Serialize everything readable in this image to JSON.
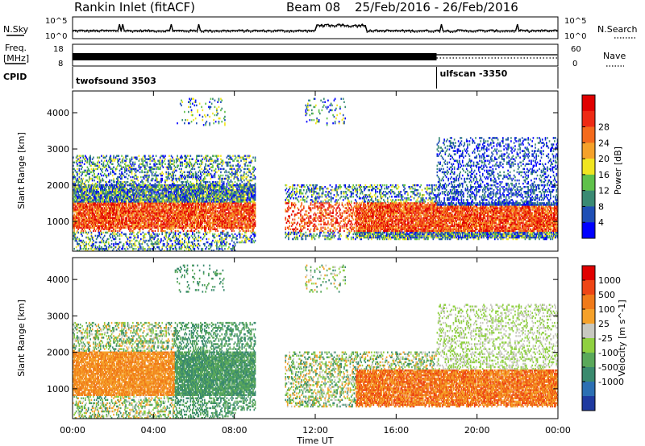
{
  "header": {
    "station": "Rankin Inlet (fitACF)",
    "beam": "Beam 08",
    "date_range": "25/Feb/2016 - 26/Feb/2016"
  },
  "panels": {
    "nsky": {
      "left_label": "N.Sky",
      "left_ticks": [
        "10^5",
        "10^0"
      ],
      "right_label": "N.Search",
      "right_ticks": [
        "10^5",
        "10^0"
      ]
    },
    "freq": {
      "left_label_top": "Freq.",
      "left_label_unit": "[MHz]",
      "left_ticks": [
        "18",
        "8"
      ],
      "right_label": "Nave",
      "right_ticks": [
        "60",
        "0"
      ]
    },
    "cpid": {
      "label": "CPID",
      "segments": [
        {
          "name": "twofsound 3503",
          "start_h": 0
        },
        {
          "name": "ulfscan -3350",
          "start_h": 18
        }
      ]
    }
  },
  "chart_data": [
    {
      "type": "heatmap",
      "name": "power",
      "ylabel": "Slant Range [km]",
      "xlabel": "Time UT",
      "x_ticks": [
        "00:00",
        "04:00",
        "08:00",
        "12:00",
        "16:00",
        "20:00",
        "00:00"
      ],
      "xlim_hours": [
        0,
        24
      ],
      "y_ticks": [
        1000,
        2000,
        3000,
        4000
      ],
      "ylim_km": [
        180,
        4600
      ],
      "colorbar": {
        "label": "Power [dB]",
        "ticks": [
          "4",
          "8",
          "12",
          "16",
          "20",
          "24",
          "28"
        ],
        "colors": [
          "#0000ff",
          "#1f4fb5",
          "#3a8a73",
          "#5fc14a",
          "#f0e520",
          "#f5a12a",
          "#f46a1c",
          "#ee2a14",
          "#e00000"
        ]
      }
    },
    {
      "type": "heatmap",
      "name": "velocity",
      "ylabel": "Slant Range [km]",
      "xlabel": "Time UT",
      "x_ticks": [
        "00:00",
        "04:00",
        "08:00",
        "12:00",
        "16:00",
        "20:00",
        "00:00"
      ],
      "xlim_hours": [
        0,
        24
      ],
      "y_ticks": [
        1000,
        2000,
        3000,
        4000
      ],
      "ylim_km": [
        180,
        4600
      ],
      "colorbar": {
        "label": "Velocity [m s^-1]",
        "ticks": [
          "1000",
          "500",
          "100",
          "25",
          "-25",
          "-100",
          "-500",
          "-1000"
        ],
        "colors": [
          "#1f3aa0",
          "#2c6fb3",
          "#3a8a6e",
          "#5aa85a",
          "#8fd040",
          "#c8c8c0",
          "#f5a12a",
          "#f07a1a",
          "#ee4515",
          "#e00000"
        ]
      }
    }
  ]
}
